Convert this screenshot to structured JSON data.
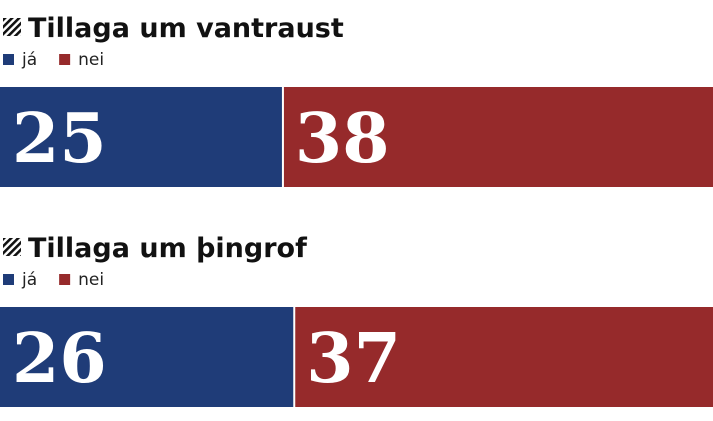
{
  "chart_data": [
    {
      "type": "bar",
      "stacked": true,
      "orientation": "horizontal",
      "title": "Tillaga um vantraust",
      "series": [
        {
          "name": "já",
          "color": "#1f3c78",
          "values": [
            25
          ]
        },
        {
          "name": "nei",
          "color": "#962a2b",
          "values": [
            38
          ]
        }
      ]
    },
    {
      "type": "bar",
      "stacked": true,
      "orientation": "horizontal",
      "title": "Tillaga um þingrof",
      "series": [
        {
          "name": "já",
          "color": "#1f3c78",
          "values": [
            26
          ]
        },
        {
          "name": "nei",
          "color": "#962a2b",
          "values": [
            37
          ]
        }
      ]
    }
  ]
}
